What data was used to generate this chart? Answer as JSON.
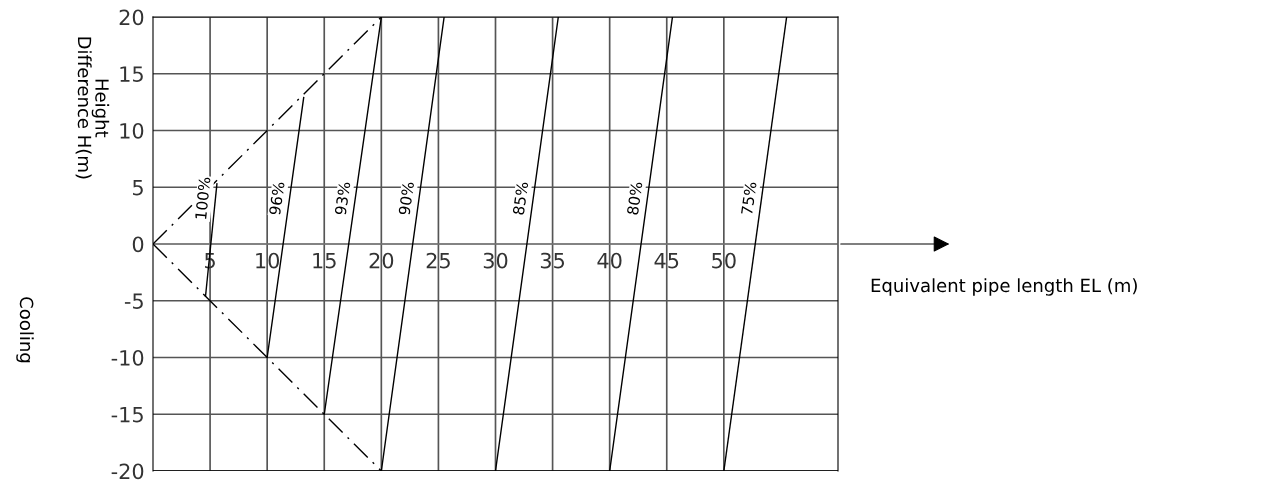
{
  "chart_data": {
    "type": "line",
    "ylabel": "Height\nDifference H(m)",
    "annotations": [
      "Cooling",
      "Equivalent pipe length EL (m)"
    ],
    "xlim": [
      0,
      60
    ],
    "ylim": [
      -20,
      20
    ],
    "xticks": [
      5,
      10,
      15,
      20,
      25,
      30,
      35,
      40,
      45,
      50
    ],
    "yticks": [
      -20,
      -15,
      -10,
      -5,
      0,
      5,
      10,
      15,
      20
    ],
    "grid": true,
    "legend": false,
    "marker": "none",
    "series": [
      {
        "name": null,
        "color": "#000000",
        "line_style": "dashed",
        "x": [
          0,
          20
        ],
        "values": [
          0,
          20
        ]
      },
      {
        "name": null,
        "color": "#000000",
        "line_style": "dashed",
        "x": [
          0,
          20
        ],
        "values": [
          0,
          -20
        ]
      },
      {
        "name": "100%",
        "color": "#000000",
        "line_style": "solid",
        "x": [
          4.6,
          5.6
        ],
        "values": [
          -4.6,
          5.3
        ]
      },
      {
        "name": "96%",
        "color": "#000000",
        "line_style": "solid",
        "x": [
          10,
          13.2
        ],
        "values": [
          -10,
          12.9
        ]
      },
      {
        "name": "93%",
        "color": "#000000",
        "line_style": "solid",
        "x": [
          15,
          20
        ],
        "values": [
          -15,
          20
        ]
      },
      {
        "name": "90%",
        "color": "#000000",
        "line_style": "solid",
        "x": [
          20,
          25.5
        ],
        "values": [
          -20,
          20
        ]
      },
      {
        "name": "85%",
        "color": "#000000",
        "line_style": "solid",
        "x": [
          30,
          35.5
        ],
        "values": [
          -20,
          20
        ]
      },
      {
        "name": "80%",
        "color": "#000000",
        "line_style": "solid",
        "x": [
          40,
          45.5
        ],
        "values": [
          -20,
          20
        ]
      },
      {
        "name": "75%",
        "color": "#000000",
        "line_style": "solid",
        "x": [
          50,
          55.5
        ],
        "values": [
          -20,
          20
        ]
      }
    ]
  }
}
